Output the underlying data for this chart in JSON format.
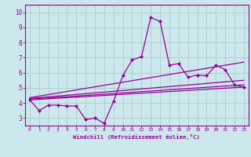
{
  "xlabel": "Windchill (Refroidissement éolien,°C)",
  "bg_color": "#cce8ec",
  "grid_color": "#aacccc",
  "line_color": "#990099",
  "spine_color": "#660066",
  "xlim": [
    -0.5,
    23.5
  ],
  "ylim": [
    2.5,
    10.5
  ],
  "xticks": [
    0,
    1,
    2,
    3,
    4,
    5,
    6,
    7,
    8,
    9,
    10,
    11,
    12,
    13,
    14,
    15,
    16,
    17,
    18,
    19,
    20,
    21,
    22,
    23
  ],
  "yticks": [
    3,
    4,
    5,
    6,
    7,
    8,
    9,
    10
  ],
  "line1_x": [
    0,
    1,
    2,
    3,
    4,
    5,
    6,
    7,
    8,
    9,
    10,
    11,
    12,
    13,
    14,
    15,
    16,
    17,
    18,
    19,
    20,
    21,
    22,
    23
  ],
  "line1_y": [
    4.2,
    3.5,
    3.85,
    3.85,
    3.8,
    3.8,
    2.9,
    3.0,
    2.65,
    4.1,
    5.8,
    6.85,
    7.05,
    9.65,
    9.4,
    6.5,
    6.6,
    5.7,
    5.85,
    5.8,
    6.5,
    6.2,
    5.2,
    5.05
  ],
  "line2_x": [
    0,
    23
  ],
  "line2_y": [
    4.2,
    5.05
  ],
  "line3_x": [
    0,
    23
  ],
  "line3_y": [
    4.25,
    5.2
  ],
  "line4_x": [
    0,
    23
  ],
  "line4_y": [
    4.3,
    5.5
  ],
  "line5_x": [
    0,
    23
  ],
  "line5_y": [
    4.35,
    6.7
  ]
}
